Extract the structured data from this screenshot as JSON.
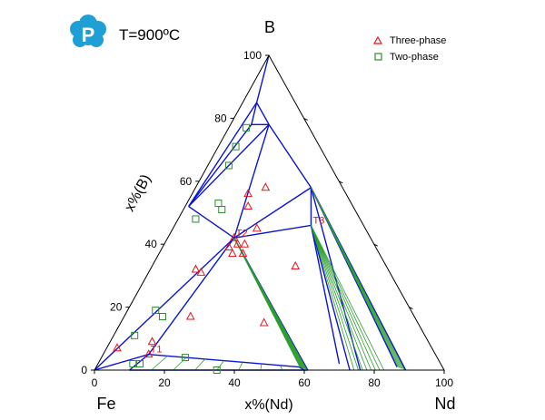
{
  "chart_data": {
    "type": "scatter",
    "subtype": "ternary-phase-diagram",
    "title": "T=900ºC",
    "logo_letter": "P",
    "corners": {
      "left": "Fe",
      "top": "B",
      "right": "Nd"
    },
    "xlabel": "x%(Nd)",
    "ylabel": "x%(B)",
    "range": [
      0,
      100
    ],
    "bottom_ticks": [
      "0",
      "20",
      "40",
      "60",
      "80",
      "100"
    ],
    "left_ticks": [
      "0",
      "20",
      "40",
      "60",
      "80",
      "100"
    ],
    "grid": false,
    "legend_position": "top-right",
    "colors": {
      "triangle": "#e8141c",
      "square": "#2e8b2e",
      "boundary": "#0a14d2",
      "tieline": "#2b9e2b",
      "frame": "#000000",
      "logo": "#1ea0d6"
    },
    "series": [
      {
        "name": "Three-phase",
        "marker": "triangle",
        "points": [
          {
            "nd": 3,
            "b": 7
          },
          {
            "nd": 12,
            "b": 9
          },
          {
            "nd": 13,
            "b": 5
          },
          {
            "nd": 13,
            "b": 32
          },
          {
            "nd": 15,
            "b": 31
          },
          {
            "nd": 19,
            "b": 17
          },
          {
            "nd": 21,
            "b": 37
          },
          {
            "nd": 19,
            "b": 39
          },
          {
            "nd": 19,
            "b": 42
          },
          {
            "nd": 21,
            "b": 40
          },
          {
            "nd": 24,
            "b": 45
          },
          {
            "nd": 23,
            "b": 40
          },
          {
            "nd": 24,
            "b": 37
          },
          {
            "nd": 16,
            "b": 56
          },
          {
            "nd": 20,
            "b": 58
          },
          {
            "nd": 18,
            "b": 52
          },
          {
            "nd": 41,
            "b": 33
          },
          {
            "nd": 41,
            "b": 15
          }
        ]
      },
      {
        "name": "Two-phase",
        "marker": "square",
        "points": [
          {
            "nd": 10,
            "b": 2
          },
          {
            "nd": 12,
            "b": 2
          },
          {
            "nd": 6,
            "b": 11
          },
          {
            "nd": 8,
            "b": 19
          },
          {
            "nd": 11,
            "b": 17
          },
          {
            "nd": 24,
            "b": 4
          },
          {
            "nd": 35,
            "b": 0
          },
          {
            "nd": 5,
            "b": 48
          },
          {
            "nd": 9,
            "b": 53
          },
          {
            "nd": 11,
            "b": 51
          },
          {
            "nd": 5,
            "b": 77
          },
          {
            "nd": 5,
            "b": 71
          },
          {
            "nd": 6,
            "b": 65
          }
        ]
      }
    ],
    "invariant_points": [
      {
        "label": "T1",
        "nd": 13,
        "b": 5
      },
      {
        "label": "T2",
        "nd": 19,
        "b": 42
      },
      {
        "label": "T3",
        "nd": 39,
        "b": 46
      }
    ],
    "phase_boundaries": [
      [
        [
          0,
          100
        ],
        [
          4,
          85
        ]
      ],
      [
        [
          1,
          52
        ],
        [
          4,
          85
        ]
      ],
      [
        [
          1,
          52
        ],
        [
          6,
          78
        ]
      ],
      [
        [
          4,
          85
        ],
        [
          6,
          78
        ]
      ],
      [
        [
          4,
          85
        ],
        [
          11,
          78
        ]
      ],
      [
        [
          6,
          78
        ],
        [
          11,
          78
        ]
      ],
      [
        [
          1,
          52
        ],
        [
          11,
          78
        ]
      ],
      [
        [
          19,
          42
        ],
        [
          11,
          78
        ]
      ],
      [
        [
          19,
          42
        ],
        [
          1,
          52
        ]
      ],
      [
        [
          19,
          42
        ],
        [
          0,
          0
        ]
      ],
      [
        [
          19,
          42
        ],
        [
          33,
          58
        ]
      ],
      [
        [
          33,
          58
        ],
        [
          11,
          78
        ]
      ],
      [
        [
          19,
          42
        ],
        [
          39,
          46
        ]
      ],
      [
        [
          39,
          46
        ],
        [
          33,
          58
        ]
      ],
      [
        [
          19,
          42
        ],
        [
          61,
          0
        ]
      ],
      [
        [
          19,
          42
        ],
        [
          13,
          5
        ]
      ],
      [
        [
          13,
          5
        ],
        [
          0,
          0
        ]
      ],
      [
        [
          13,
          5
        ],
        [
          10,
          0
        ]
      ],
      [
        [
          13,
          5
        ],
        [
          58,
          1
        ]
      ],
      [
        [
          58,
          1
        ],
        [
          60,
          0
        ]
      ],
      [
        [
          39,
          46
        ],
        [
          69,
          2
        ]
      ],
      [
        [
          39,
          46
        ],
        [
          73,
          0
        ]
      ],
      [
        [
          33,
          58
        ],
        [
          76,
          0
        ]
      ],
      [
        [
          33,
          58
        ],
        [
          86,
          1
        ]
      ],
      [
        [
          33,
          58
        ],
        [
          89,
          0
        ]
      ],
      [
        [
          10,
          0
        ],
        [
          61,
          0
        ]
      ]
    ],
    "tie_line_regions": [
      {
        "from": [
          [
            13,
            5
          ],
          [
            58,
            1
          ]
        ],
        "to": [
          [
            10,
            0
          ],
          [
            60,
            0
          ]
        ],
        "count": 8
      },
      {
        "from": [
          [
            19,
            42
          ],
          [
            19,
            42
          ]
        ],
        "to": [
          [
            61,
            0
          ],
          [
            58,
            1
          ]
        ],
        "count": 10
      },
      {
        "from": [
          [
            39,
            46
          ],
          [
            39,
            46
          ]
        ],
        "to": [
          [
            73,
            0
          ],
          [
            84,
            0
          ]
        ],
        "count": 9
      },
      {
        "from": [
          [
            33,
            58
          ],
          [
            33,
            58
          ]
        ],
        "to": [
          [
            86,
            1
          ],
          [
            89,
            0
          ]
        ],
        "count": 6
      }
    ]
  }
}
